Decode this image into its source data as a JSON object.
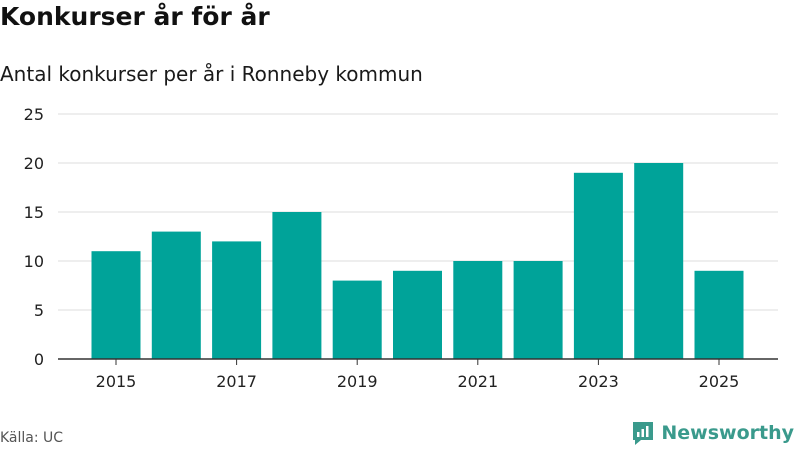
{
  "header": {
    "title": "Konkurser år för år",
    "subtitle": "Antal konkurser per år i Ronneby kommun"
  },
  "footer": {
    "source": "Källa: UC",
    "brand": "Newsworthy",
    "brand_color": "#3a9a8c"
  },
  "colors": {
    "bar": "#00a399",
    "grid": "#dddddd",
    "axis": "#333333",
    "tick_text": "#222222"
  },
  "chart_data": {
    "type": "bar",
    "title": "Konkurser år för år",
    "subtitle": "Antal konkurser per år i Ronneby kommun",
    "categories": [
      "2015",
      "2016",
      "2017",
      "2018",
      "2019",
      "2020",
      "2021",
      "2022",
      "2023",
      "2024",
      "2025"
    ],
    "values": [
      11,
      13,
      12,
      15,
      8,
      9,
      10,
      10,
      19,
      20,
      9
    ],
    "x_tick_labels": [
      "2015",
      "2017",
      "2019",
      "2021",
      "2023",
      "2025"
    ],
    "y_ticks": [
      0,
      5,
      10,
      15,
      20,
      25
    ],
    "ylim": [
      0,
      25
    ],
    "xlabel": "",
    "ylabel": "",
    "grid": true,
    "legend": "none"
  }
}
